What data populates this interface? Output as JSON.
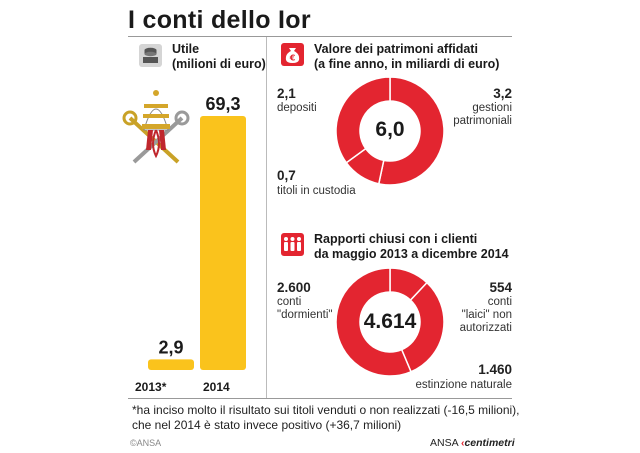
{
  "title": "I conti dello Ior",
  "colors": {
    "bar": "#fac31c",
    "donut": "#e32530",
    "divider": "#ffffff",
    "icon_red": "#e32530"
  },
  "utile": {
    "header_line1": "Utile",
    "header_line2": "(milioni di euro)",
    "icon": "coins-stack-icon",
    "emblem": "papal-tiara-keys-emblem"
  },
  "patrimoni": {
    "header_line1": "Valore dei patrimoni affidati",
    "header_line2": "(a fine anno, in miliardi di euro)",
    "icon": "money-bag-euro-icon",
    "total": "6,0",
    "labels": {
      "depositi_value": "2,1",
      "depositi_text": "depositi",
      "gestioni_value": "3,2",
      "gestioni_text_1": "gestioni",
      "gestioni_text_2": "patrimoniali",
      "titoli_value": "0,7",
      "titoli_text": "titoli in custodia"
    }
  },
  "rapporti": {
    "header_line1": "Rapporti chiusi con i clienti",
    "header_line2": "da maggio 2013 a dicembre 2014",
    "icon": "people-group-icon",
    "total": "4.614",
    "labels": {
      "dormienti_value": "2.600",
      "dormienti_text_1": "conti",
      "dormienti_text_2": "\"dormienti\"",
      "laici_value": "554",
      "laici_text_1": "conti",
      "laici_text_2": "\"laici\" non",
      "laici_text_3": "autorizzati",
      "estinzione_value": "1.460",
      "estinzione_text": "estinzione naturale"
    }
  },
  "footnote": {
    "line1": "*ha inciso molto il risultato sui titoli venduti o non realizzati (-16,5 milioni),",
    "line2": "che nel 2014 è stato invece positivo (+36,7 milioni)"
  },
  "credit_left": "©ANSA",
  "brand_ansa": "ANSA",
  "brand_centimetri": "centimetri",
  "chart_data": [
    {
      "type": "bar",
      "title": "Utile",
      "ylabel": "(milioni di euro)",
      "categories": [
        "2013*",
        "2014"
      ],
      "values": [
        2.9,
        69.3
      ],
      "value_labels": [
        "2,9",
        "69,3"
      ],
      "ylim": [
        0,
        69.3
      ],
      "grid": false
    },
    {
      "type": "pie",
      "donut": true,
      "title": "Valore dei patrimoni affidati",
      "subtitle": "(a fine anno, in miliardi di euro)",
      "labels": [
        "gestioni patrimoniali",
        "titoli in custodia",
        "depositi"
      ],
      "values": [
        3.2,
        0.7,
        2.1
      ],
      "total": 6.0
    },
    {
      "type": "pie",
      "donut": true,
      "title": "Rapporti chiusi con i clienti",
      "subtitle": "da maggio 2013 a dicembre 2014",
      "labels": [
        "conti \"laici\" non autorizzati",
        "estinzione naturale",
        "conti \"dormienti\""
      ],
      "values": [
        554,
        1460,
        2600
      ],
      "total": 4614
    }
  ]
}
